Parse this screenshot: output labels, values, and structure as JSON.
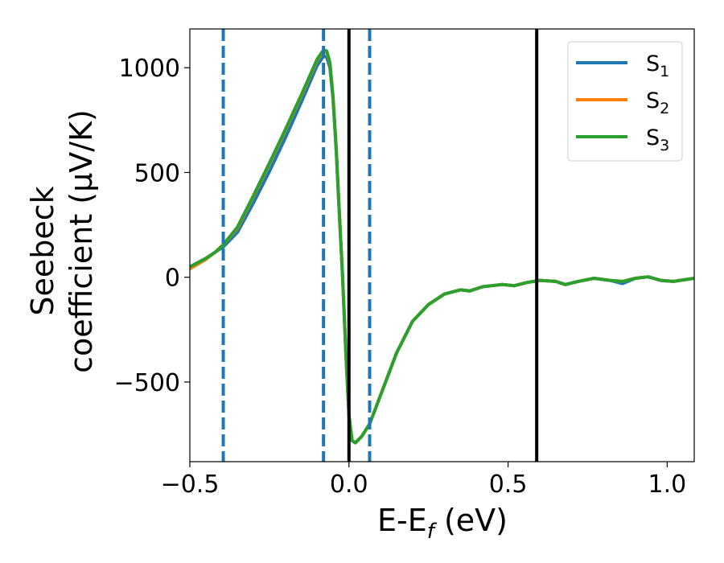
{
  "chart_data": {
    "type": "line",
    "xlabel": {
      "main": "E-E",
      "sub": "f",
      "tail": " (eV)"
    },
    "ylabel": {
      "line1": "Seebeck",
      "line2": "coefficient  (μV/K)"
    },
    "xlim": [
      -0.5,
      1.085
    ],
    "ylim": [
      -880,
      1185
    ],
    "xticks": [
      {
        "value": -0.5,
        "label": "−0.5"
      },
      {
        "value": 0.0,
        "label": "0.0"
      },
      {
        "value": 0.5,
        "label": "0.5"
      },
      {
        "value": 1.0,
        "label": "1.0"
      }
    ],
    "yticks": [
      {
        "value": -500,
        "label": "−500"
      },
      {
        "value": 0,
        "label": "0"
      },
      {
        "value": 500,
        "label": "500"
      },
      {
        "value": 1000,
        "label": "1000"
      }
    ],
    "grid": false,
    "legend_position": "top-right",
    "vlines": [
      {
        "x": -0.395,
        "style": "dashed",
        "color": "#1f77b4"
      },
      {
        "x": -0.08,
        "style": "dashed",
        "color": "#1f77b4"
      },
      {
        "x": 0.065,
        "style": "dashed",
        "color": "#1f77b4"
      },
      {
        "x": 0.0,
        "style": "solid",
        "color": "#000000"
      },
      {
        "x": 0.59,
        "style": "solid",
        "color": "#000000"
      }
    ],
    "series": [
      {
        "name": "S",
        "sub": "1",
        "color": "#1f77b4",
        "points": [
          [
            -0.5,
            50
          ],
          [
            -0.45,
            90
          ],
          [
            -0.42,
            120
          ],
          [
            -0.395,
            145
          ],
          [
            -0.35,
            215
          ],
          [
            -0.3,
            355
          ],
          [
            -0.25,
            505
          ],
          [
            -0.2,
            665
          ],
          [
            -0.15,
            835
          ],
          [
            -0.1,
            1010
          ],
          [
            -0.08,
            1055
          ],
          [
            -0.07,
            1050
          ],
          [
            -0.06,
            1000
          ],
          [
            -0.05,
            850
          ],
          [
            -0.04,
            600
          ],
          [
            -0.03,
            300
          ],
          [
            -0.02,
            0
          ],
          [
            -0.01,
            -350
          ],
          [
            0.0,
            -660
          ],
          [
            0.01,
            -780
          ],
          [
            0.02,
            -790
          ],
          [
            0.04,
            -760
          ],
          [
            0.065,
            -700
          ],
          [
            0.1,
            -560
          ],
          [
            0.15,
            -360
          ],
          [
            0.2,
            -210
          ],
          [
            0.25,
            -130
          ],
          [
            0.3,
            -80
          ],
          [
            0.35,
            -60
          ],
          [
            0.38,
            -65
          ],
          [
            0.42,
            -45
          ],
          [
            0.48,
            -35
          ],
          [
            0.52,
            -40
          ],
          [
            0.56,
            -25
          ],
          [
            0.6,
            -15
          ],
          [
            0.65,
            -20
          ],
          [
            0.68,
            -35
          ],
          [
            0.72,
            -20
          ],
          [
            0.77,
            -5
          ],
          [
            0.82,
            -15
          ],
          [
            0.86,
            -30
          ],
          [
            0.9,
            -5
          ],
          [
            0.94,
            2
          ],
          [
            0.98,
            -15
          ],
          [
            1.02,
            -20
          ],
          [
            1.085,
            -5
          ]
        ]
      },
      {
        "name": "S",
        "sub": "2",
        "color": "#ff7f0e",
        "points": [
          [
            -0.5,
            40
          ],
          [
            -0.45,
            85
          ],
          [
            -0.42,
            120
          ],
          [
            -0.395,
            155
          ],
          [
            -0.35,
            235
          ],
          [
            -0.3,
            385
          ],
          [
            -0.25,
            540
          ],
          [
            -0.2,
            700
          ],
          [
            -0.15,
            865
          ],
          [
            -0.1,
            1035
          ],
          [
            -0.08,
            1080
          ],
          [
            -0.07,
            1075
          ],
          [
            -0.06,
            1020
          ],
          [
            -0.05,
            860
          ],
          [
            -0.04,
            610
          ],
          [
            -0.03,
            300
          ],
          [
            -0.02,
            0
          ],
          [
            -0.01,
            -350
          ],
          [
            0.0,
            -660
          ],
          [
            0.01,
            -780
          ],
          [
            0.02,
            -790
          ],
          [
            0.04,
            -760
          ],
          [
            0.065,
            -700
          ],
          [
            0.1,
            -560
          ],
          [
            0.15,
            -360
          ],
          [
            0.2,
            -210
          ],
          [
            0.25,
            -130
          ],
          [
            0.3,
            -80
          ],
          [
            0.35,
            -60
          ],
          [
            0.38,
            -65
          ],
          [
            0.42,
            -45
          ],
          [
            0.48,
            -35
          ],
          [
            0.52,
            -40
          ],
          [
            0.56,
            -25
          ],
          [
            0.6,
            -15
          ],
          [
            0.65,
            -20
          ],
          [
            0.68,
            -35
          ],
          [
            0.72,
            -20
          ],
          [
            0.77,
            -5
          ],
          [
            0.82,
            -15
          ],
          [
            0.86,
            -20
          ],
          [
            0.9,
            -5
          ],
          [
            0.94,
            2
          ],
          [
            0.98,
            -15
          ],
          [
            1.02,
            -20
          ],
          [
            1.085,
            -5
          ]
        ]
      },
      {
        "name": "S",
        "sub": "3",
        "color": "#2ca02c",
        "points": [
          [
            -0.5,
            50
          ],
          [
            -0.45,
            90
          ],
          [
            -0.42,
            120
          ],
          [
            -0.395,
            155
          ],
          [
            -0.35,
            240
          ],
          [
            -0.3,
            390
          ],
          [
            -0.25,
            545
          ],
          [
            -0.2,
            705
          ],
          [
            -0.15,
            870
          ],
          [
            -0.1,
            1040
          ],
          [
            -0.08,
            1085
          ],
          [
            -0.07,
            1080
          ],
          [
            -0.06,
            1025
          ],
          [
            -0.05,
            860
          ],
          [
            -0.04,
            610
          ],
          [
            -0.03,
            300
          ],
          [
            -0.02,
            0
          ],
          [
            -0.01,
            -350
          ],
          [
            0.0,
            -660
          ],
          [
            0.01,
            -780
          ],
          [
            0.02,
            -790
          ],
          [
            0.04,
            -760
          ],
          [
            0.065,
            -700
          ],
          [
            0.1,
            -560
          ],
          [
            0.15,
            -360
          ],
          [
            0.2,
            -210
          ],
          [
            0.25,
            -130
          ],
          [
            0.3,
            -80
          ],
          [
            0.35,
            -60
          ],
          [
            0.38,
            -65
          ],
          [
            0.42,
            -45
          ],
          [
            0.48,
            -35
          ],
          [
            0.52,
            -40
          ],
          [
            0.56,
            -25
          ],
          [
            0.6,
            -15
          ],
          [
            0.65,
            -20
          ],
          [
            0.68,
            -35
          ],
          [
            0.72,
            -20
          ],
          [
            0.77,
            -5
          ],
          [
            0.82,
            -15
          ],
          [
            0.86,
            -20
          ],
          [
            0.9,
            -5
          ],
          [
            0.94,
            2
          ],
          [
            0.98,
            -15
          ],
          [
            1.02,
            -20
          ],
          [
            1.085,
            -5
          ]
        ]
      }
    ]
  }
}
